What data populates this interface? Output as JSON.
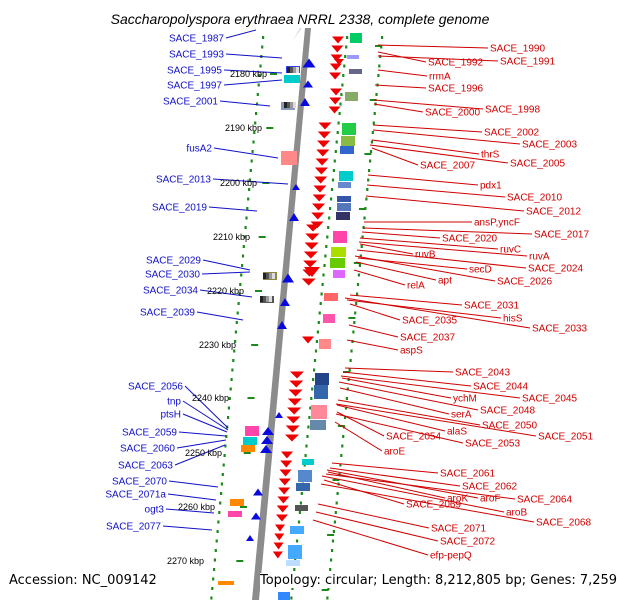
{
  "title": "Saccharopolyspora erythraea NRRL 2338, complete genome",
  "accession": "Accession: NC_009142",
  "summary": "Topology: circular; Length: 8,212,805 bp; Genes: 7,259",
  "colors": {
    "left_labels": "#1010c8",
    "right_labels": "#d00000",
    "backbone": "#8c8c8c",
    "tick_marks": "#1a8a1a",
    "forward_arrows": "#0a0ae0",
    "reverse_arrows": "#ee0000"
  },
  "kbp_labels": [
    "2180 kbp",
    "2190 kbp",
    "2200 kbp",
    "2210 kbp",
    "2220 kbp",
    "2230 kbp",
    "2240 kbp",
    "2250 kbp",
    "2260 kbp",
    "2270 kbp"
  ],
  "left_genes": [
    "SACE_1987",
    "SACE_1993",
    "SACE_1995",
    "SACE_1997",
    "SACE_2001",
    "fusA2",
    "SACE_2013",
    "SACE_2019",
    "SACE_2029",
    "SACE_2030",
    "SACE_2034",
    "SACE_2039",
    "SACE_2056",
    "tnp",
    "ptsH",
    "SACE_2059",
    "SACE_2060",
    "SACE_2063",
    "SACE_2070",
    "SACE_2071a",
    "ogt3",
    "SACE_2077"
  ],
  "right_genes": [
    "SACE_1990",
    "SACE_1992",
    "SACE_1991",
    "rrmA",
    "SACE_1996",
    "SACE_2000",
    "SACE_1998",
    "SACE_2002",
    "SACE_2003",
    "thrS",
    "SACE_2007",
    "SACE_2005",
    "pdx1",
    "SACE_2010",
    "SACE_2012",
    "ansP,yncF",
    "SACE_2017",
    "SACE_2020",
    "ruvC",
    "ruvB",
    "ruvA",
    "secD",
    "SACE_2024",
    "apt",
    "SACE_2026",
    "relA",
    "SACE_2031",
    "hisS",
    "SACE_2035",
    "SACE_2033",
    "SACE_2037",
    "aspS",
    "SACE_2043",
    "SACE_2044",
    "ychM",
    "SACE_2045",
    "serA",
    "SACE_2048",
    "SACE_2050",
    "alaS",
    "SACE_2054",
    "SACE_2051",
    "SACE_2053",
    "aroE",
    "SACE_2061",
    "SACE_2062",
    "aroK",
    "aroF",
    "SACE_2064",
    "SACE_2069",
    "aroB",
    "SACE_2068",
    "SACE_2071",
    "SACE_2072",
    "efp-pepQ"
  ]
}
